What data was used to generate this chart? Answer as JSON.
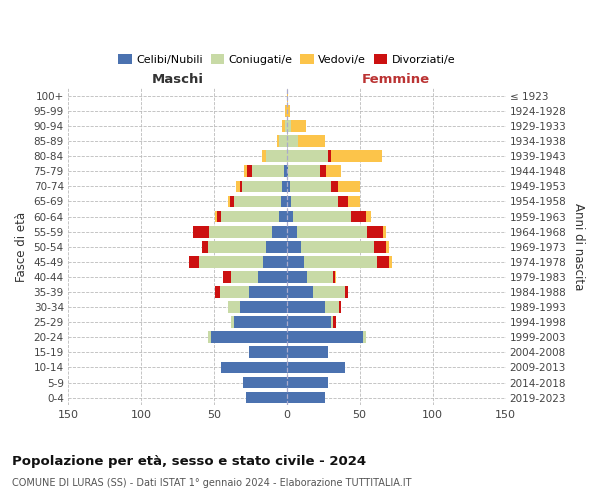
{
  "age_groups": [
    "0-4",
    "5-9",
    "10-14",
    "15-19",
    "20-24",
    "25-29",
    "30-34",
    "35-39",
    "40-44",
    "45-49",
    "50-54",
    "55-59",
    "60-64",
    "65-69",
    "70-74",
    "75-79",
    "80-84",
    "85-89",
    "90-94",
    "95-99",
    "100+"
  ],
  "birth_years": [
    "2019-2023",
    "2014-2018",
    "2009-2013",
    "2004-2008",
    "1999-2003",
    "1994-1998",
    "1989-1993",
    "1984-1988",
    "1979-1983",
    "1974-1978",
    "1969-1973",
    "1964-1968",
    "1959-1963",
    "1954-1958",
    "1949-1953",
    "1944-1948",
    "1939-1943",
    "1934-1938",
    "1929-1933",
    "1924-1928",
    "≤ 1923"
  ],
  "colors": {
    "celibi": "#4b72b0",
    "coniugati": "#c8daa6",
    "vedovi": "#fcc44a",
    "divorziati": "#cc1111"
  },
  "males": {
    "celibi": [
      28,
      30,
      45,
      26,
      52,
      36,
      32,
      26,
      20,
      16,
      14,
      10,
      5,
      4,
      3,
      2,
      0,
      0,
      0,
      0,
      0
    ],
    "coniugati": [
      0,
      0,
      0,
      0,
      2,
      2,
      8,
      20,
      18,
      44,
      40,
      43,
      40,
      32,
      28,
      22,
      14,
      5,
      1,
      0,
      0
    ],
    "vedovi": [
      0,
      0,
      0,
      0,
      0,
      0,
      0,
      0,
      0,
      0,
      0,
      0,
      1,
      1,
      3,
      2,
      3,
      2,
      2,
      1,
      0
    ],
    "divorziati": [
      0,
      0,
      0,
      0,
      0,
      0,
      0,
      3,
      6,
      7,
      4,
      11,
      3,
      3,
      1,
      3,
      0,
      0,
      0,
      0,
      0
    ]
  },
  "females": {
    "nubili": [
      26,
      28,
      40,
      28,
      52,
      30,
      26,
      18,
      14,
      12,
      10,
      7,
      4,
      3,
      2,
      1,
      0,
      0,
      0,
      0,
      0
    ],
    "coniugate": [
      0,
      0,
      0,
      0,
      2,
      2,
      10,
      22,
      18,
      50,
      50,
      48,
      40,
      32,
      28,
      22,
      28,
      8,
      3,
      0,
      0
    ],
    "vedove": [
      0,
      0,
      0,
      0,
      0,
      0,
      0,
      0,
      1,
      2,
      2,
      2,
      4,
      8,
      15,
      10,
      35,
      18,
      10,
      2,
      1
    ],
    "divorziate": [
      0,
      0,
      0,
      0,
      0,
      2,
      1,
      2,
      1,
      8,
      8,
      11,
      10,
      7,
      5,
      4,
      2,
      0,
      0,
      0,
      0
    ]
  },
  "title1": "Popolazione per età, sesso e stato civile - 2024",
  "title2": "COMUNE DI LURAS (SS) - Dati ISTAT 1° gennaio 2024 - Elaborazione TUTTITALIA.IT",
  "xlabel_left": "Maschi",
  "xlabel_right": "Femmine",
  "ylabel_left": "Fasce di età",
  "ylabel_right": "Anni di nascita",
  "xlim": 150,
  "bg_color": "#ffffff",
  "grid_color": "#bbbbbb",
  "legend_labels": [
    "Celibi/Nubili",
    "Coniugati/e",
    "Vedovi/e",
    "Divorziati/e"
  ]
}
